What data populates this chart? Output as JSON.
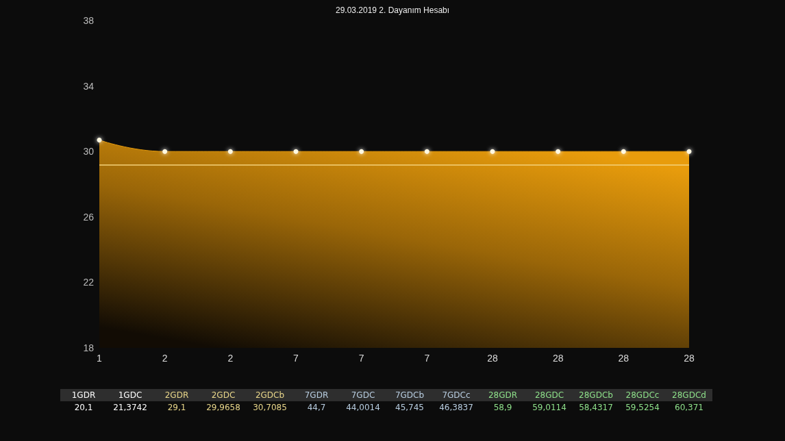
{
  "chart_data": {
    "type": "area",
    "title": "29.03.2019 2. Dayanım Hesabı",
    "categories": [
      "1",
      "2",
      "2",
      "7",
      "7",
      "7",
      "28",
      "28",
      "28",
      "28"
    ],
    "series": [
      {
        "color": "#e89c0c",
        "values": [
          30.7,
          30,
          30,
          30,
          30,
          30,
          30,
          30,
          30,
          30
        ]
      }
    ],
    "ylim": [
      18,
      38
    ],
    "yticks": [
      18,
      22,
      26,
      30,
      34,
      38
    ],
    "grid": false,
    "marker": "circle",
    "ref_lines": [
      {
        "axis": "y",
        "value": 29.2,
        "color": "#f5d27a"
      }
    ],
    "annotations": [
      "1GDR",
      "1GDC",
      "2GDR",
      "2GDC",
      "2GDCb",
      "7GDR",
      "7GDC",
      "7GDCb",
      "7GDCc",
      "28GDR",
      "28GDC",
      "28GDCb",
      "28GDCc",
      "28GDCd",
      "20,1",
      "21,3742",
      "29,1",
      "29,9658",
      "30,7085",
      "44,7",
      "44,0014",
      "45,745",
      "46,3837",
      "58,9",
      "59,0114",
      "58,4317",
      "59,5254",
      "60,371"
    ]
  }
}
